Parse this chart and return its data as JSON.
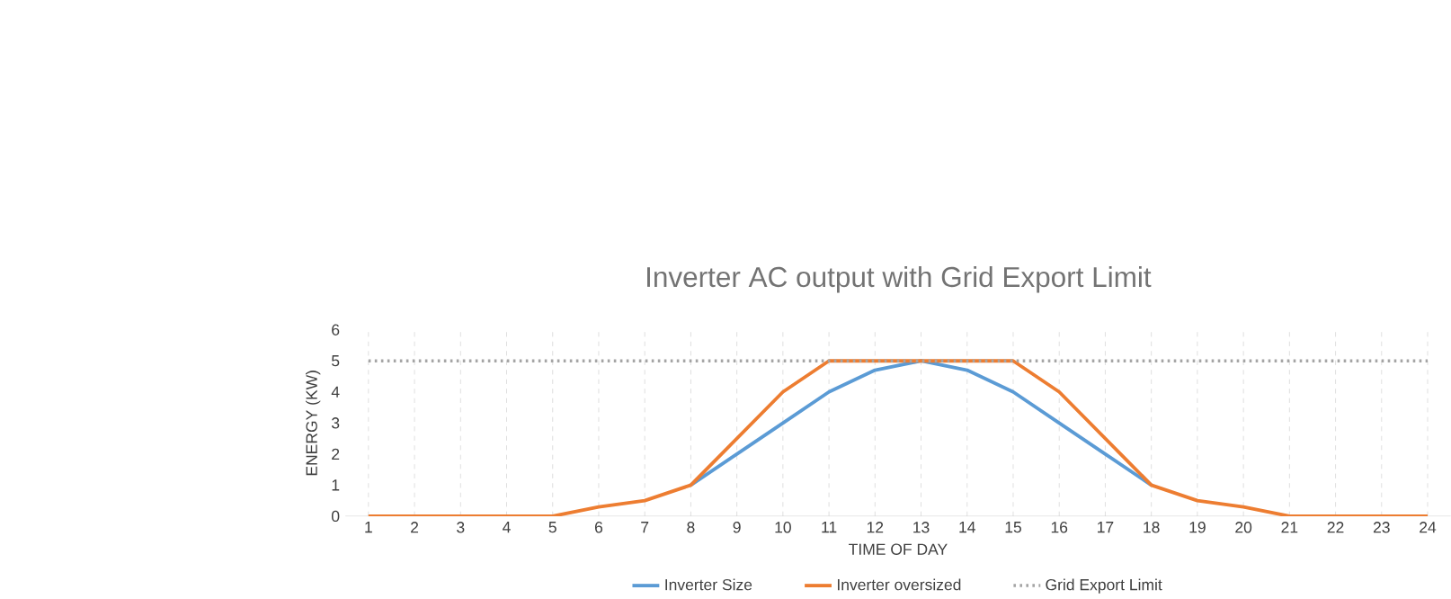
{
  "chart_data": {
    "type": "line",
    "title": "Inverter AC output with Grid Export Limit",
    "xlabel": "TIME OF DAY",
    "ylabel": "ENERGY (KW)",
    "categories": [
      "1",
      "2",
      "3",
      "4",
      "5",
      "6",
      "7",
      "8",
      "9",
      "10",
      "11",
      "12",
      "13",
      "14",
      "15",
      "16",
      "17",
      "18",
      "19",
      "20",
      "21",
      "22",
      "23",
      "24"
    ],
    "series": [
      {
        "name": "Inverter Size",
        "color": "#5b9bd5",
        "line_style": "solid",
        "values": [
          null,
          null,
          null,
          null,
          null,
          null,
          null,
          1,
          2,
          3,
          4,
          4.7,
          5,
          4.7,
          4,
          3,
          2,
          1,
          null,
          null,
          null,
          null,
          null,
          null
        ]
      },
      {
        "name": "Inverter oversized",
        "color": "#ed7d31",
        "line_style": "solid",
        "values": [
          0,
          0,
          0,
          0,
          0,
          0.3,
          0.5,
          1,
          2.5,
          4,
          5,
          5,
          5,
          5,
          5,
          4,
          2.5,
          1,
          0.5,
          0.3,
          0,
          0,
          0,
          0
        ]
      },
      {
        "name": "Grid Export Limit",
        "color": "#a5a5a5",
        "line_style": "dotted",
        "values": [
          5,
          5,
          5,
          5,
          5,
          5,
          5,
          5,
          5,
          5,
          5,
          5,
          5,
          5,
          5,
          5,
          5,
          5,
          5,
          5,
          5,
          5,
          5,
          5
        ]
      }
    ],
    "ylim": [
      0,
      6
    ],
    "yticks": [
      0,
      1,
      2,
      3,
      4,
      5,
      6
    ],
    "grid": "x",
    "legend": "bottom",
    "marker": "none"
  }
}
